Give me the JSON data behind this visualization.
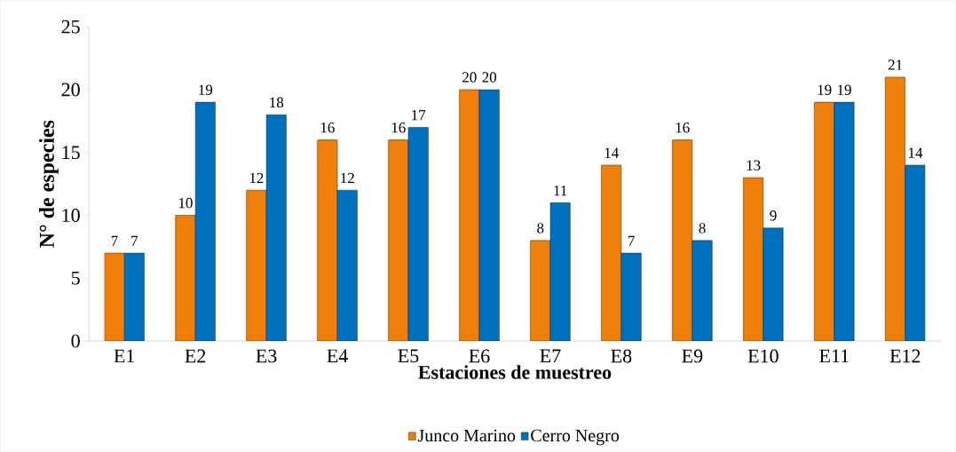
{
  "chart_data": {
    "type": "bar",
    "xlabel": "Estaciones de muestreo",
    "ylabel": "N° de especies",
    "categories": [
      "E1",
      "E2",
      "E3",
      "E4",
      "E5",
      "E6",
      "E7",
      "E8",
      "E9",
      "E10",
      "E11",
      "E12"
    ],
    "series": [
      {
        "name": "Junco Marino",
        "color": "#f07f09",
        "values": [
          7,
          10,
          12,
          16,
          16,
          20,
          8,
          14,
          16,
          13,
          19,
          21
        ]
      },
      {
        "name": "Cerro Negro",
        "color": "#0070c0",
        "values": [
          7,
          19,
          18,
          12,
          17,
          20,
          11,
          7,
          8,
          9,
          19,
          14
        ]
      }
    ],
    "ylim": [
      0,
      25
    ],
    "yticks": [
      0,
      5,
      10,
      15,
      20,
      25
    ],
    "data_labels": true,
    "legend": "bottom"
  }
}
